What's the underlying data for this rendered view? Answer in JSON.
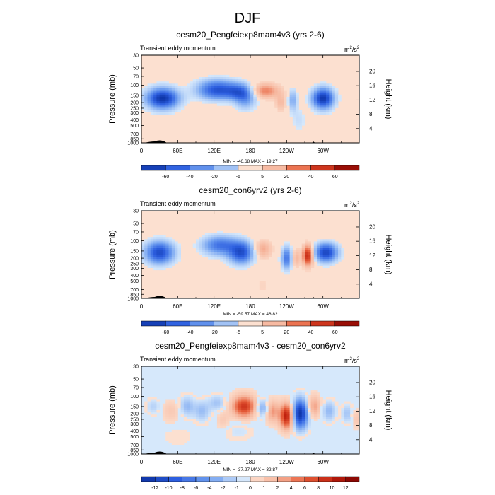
{
  "figure_title": "DJF",
  "colors": {
    "ocean_base": "#fce0d0",
    "light_blue": "#d6e8fb",
    "mid_blue": "#6f9ff0",
    "strong_blue": "#2d5fe0",
    "deep_blue": "#0a2fa0",
    "light_red": "#f6b59c",
    "mid_red": "#e8603c",
    "strong_red": "#c0200d",
    "deep_red": "#7a0000",
    "topo": "#000000"
  },
  "chart_data": [
    {
      "type": "heatmap",
      "title": "cesm20_Pengfeiexp8mam4v3 (yrs 2-6)",
      "left_label": "Transient eddy momentum",
      "units": "m²/s²",
      "units_base": "m",
      "units_exp_a": "2",
      "units_mid": "/s",
      "units_exp_b": "2",
      "ylabel": "Pressure (mb)",
      "ylabel_right": "Height (km)",
      "x_ticks": [
        "0",
        "60E",
        "120E",
        "180",
        "120W",
        "60W"
      ],
      "x_tick_lon": [
        0,
        60,
        120,
        180,
        240,
        300
      ],
      "x_range": [
        0,
        360
      ],
      "y_ticks": [
        "30",
        "50",
        "70",
        "100",
        "150",
        "200",
        "250",
        "300",
        "400",
        "500",
        "700",
        "850",
        "1000"
      ],
      "y_tick_p": [
        30,
        50,
        70,
        100,
        150,
        200,
        250,
        300,
        400,
        500,
        700,
        850,
        1000
      ],
      "y_range": [
        30,
        1000
      ],
      "right_ticks": [
        "20",
        "16",
        "12",
        "8",
        "4"
      ],
      "right_tick_km": [
        20,
        16,
        12,
        8,
        4
      ],
      "stats_text": "MIN = -46.68  MAX = 19.27",
      "min": -46.68,
      "max": 19.27,
      "colorbar_labels": [
        "-60",
        "-40",
        "-20",
        "-5",
        "5",
        "20",
        "40",
        "60"
      ],
      "blobs": [
        {
          "lon": 35,
          "p": 170,
          "wl": 18,
          "wp": 0.28,
          "a": -45
        },
        {
          "lon": 125,
          "p": 120,
          "wl": 22,
          "wp": 0.26,
          "a": -35
        },
        {
          "lon": 160,
          "p": 130,
          "wl": 14,
          "wp": 0.22,
          "a": -22
        },
        {
          "lon": 172,
          "p": 170,
          "wl": 12,
          "wp": 0.3,
          "a": -18
        },
        {
          "lon": 205,
          "p": 125,
          "wl": 16,
          "wp": 0.2,
          "a": 19
        },
        {
          "lon": 230,
          "p": 200,
          "wl": 6,
          "wp": 0.25,
          "a": 10
        },
        {
          "lon": 250,
          "p": 180,
          "wl": 5,
          "wp": 0.3,
          "a": -15
        },
        {
          "lon": 300,
          "p": 170,
          "wl": 12,
          "wp": 0.28,
          "a": -44
        },
        {
          "lon": 260,
          "p": 400,
          "wl": 8,
          "wp": 0.35,
          "a": -5
        }
      ]
    },
    {
      "type": "heatmap",
      "title": "cesm20_con6yrv2 (yrs 2-6)",
      "left_label": "Transient eddy momentum",
      "units": "m²/s²",
      "units_base": "m",
      "units_exp_a": "2",
      "units_mid": "/s",
      "units_exp_b": "2",
      "ylabel": "Pressure (mb)",
      "ylabel_right": "Height (km)",
      "x_ticks": [
        "0",
        "60E",
        "120E",
        "180",
        "120W",
        "60W"
      ],
      "x_tick_lon": [
        0,
        60,
        120,
        180,
        240,
        300
      ],
      "x_range": [
        0,
        360
      ],
      "y_ticks": [
        "30",
        "50",
        "70",
        "100",
        "150",
        "200",
        "250",
        "300",
        "400",
        "500",
        "700",
        "850",
        "1000"
      ],
      "y_tick_p": [
        30,
        50,
        70,
        100,
        150,
        200,
        250,
        300,
        400,
        500,
        700,
        850,
        1000
      ],
      "y_range": [
        30,
        1000
      ],
      "right_ticks": [
        "20",
        "16",
        "12",
        "8",
        "4"
      ],
      "right_tick_km": [
        20,
        16,
        12,
        8,
        4
      ],
      "stats_text": "MIN = -59.57  MAX = 46.82",
      "min": -59.57,
      "max": 46.82,
      "colorbar_labels": [
        "-60",
        "-40",
        "-20",
        "-5",
        "5",
        "20",
        "40",
        "60"
      ],
      "blobs": [
        {
          "lon": 30,
          "p": 160,
          "wl": 16,
          "wp": 0.3,
          "a": -48
        },
        {
          "lon": 130,
          "p": 120,
          "wl": 20,
          "wp": 0.26,
          "a": -35
        },
        {
          "lon": 165,
          "p": 160,
          "wl": 14,
          "wp": 0.3,
          "a": -45
        },
        {
          "lon": 200,
          "p": 140,
          "wl": 10,
          "wp": 0.25,
          "a": 18
        },
        {
          "lon": 240,
          "p": 200,
          "wl": 6,
          "wp": 0.3,
          "a": -35
        },
        {
          "lon": 255,
          "p": 200,
          "wl": 5,
          "wp": 0.25,
          "a": 15
        },
        {
          "lon": 275,
          "p": 180,
          "wl": 6,
          "wp": 0.28,
          "a": 46
        },
        {
          "lon": 305,
          "p": 160,
          "wl": 13,
          "wp": 0.25,
          "a": -50
        },
        {
          "lon": 200,
          "p": 600,
          "wl": 12,
          "wp": 0.35,
          "a": 4
        }
      ]
    },
    {
      "type": "heatmap",
      "title": "cesm20_Pengfeiexp8mam4v3 - cesm20_con6yrv2",
      "left_label": "Transient eddy momentum",
      "units": "m²/s²",
      "units_base": "m",
      "units_exp_a": "2",
      "units_mid": "/s",
      "units_exp_b": "2",
      "ylabel": "Pressure (mb)",
      "ylabel_right": "Height (km)",
      "x_ticks": [
        "0",
        "60E",
        "120E",
        "180",
        "120W",
        "60W"
      ],
      "x_tick_lon": [
        0,
        60,
        120,
        180,
        240,
        300
      ],
      "x_range": [
        0,
        360
      ],
      "y_ticks": [
        "30",
        "50",
        "70",
        "100",
        "150",
        "200",
        "250",
        "300",
        "400",
        "500",
        "700",
        "850",
        "1000"
      ],
      "y_tick_p": [
        30,
        50,
        70,
        100,
        150,
        200,
        250,
        300,
        400,
        500,
        700,
        850,
        1000
      ],
      "y_range": [
        30,
        1000
      ],
      "right_ticks": [
        "20",
        "16",
        "12",
        "8",
        "4"
      ],
      "right_tick_km": [
        20,
        16,
        12,
        8,
        4
      ],
      "stats_text": "MIN = -37.27  MAX = 32.87",
      "min": -37.27,
      "max": 32.87,
      "colorbar_labels": [
        "-12",
        "-10",
        "-8",
        "-6",
        "-4",
        "-2",
        "-1",
        "0",
        "1",
        "2",
        "4",
        "6",
        "8",
        "10",
        "12"
      ],
      "blobs": [
        {
          "lon": 20,
          "p": 150,
          "wl": 8,
          "wp": 0.22,
          "a": -6
        },
        {
          "lon": 50,
          "p": 180,
          "wl": 12,
          "wp": 0.3,
          "a": 5
        },
        {
          "lon": 75,
          "p": 150,
          "wl": 9,
          "wp": 0.28,
          "a": -10
        },
        {
          "lon": 100,
          "p": 180,
          "wl": 9,
          "wp": 0.28,
          "a": -9
        },
        {
          "lon": 125,
          "p": 130,
          "wl": 10,
          "wp": 0.22,
          "a": -8
        },
        {
          "lon": 135,
          "p": 260,
          "wl": 8,
          "wp": 0.25,
          "a": 5
        },
        {
          "lon": 170,
          "p": 150,
          "wl": 14,
          "wp": 0.3,
          "a": 25
        },
        {
          "lon": 200,
          "p": 160,
          "wl": 8,
          "wp": 0.25,
          "a": -15
        },
        {
          "lon": 215,
          "p": 180,
          "wl": 8,
          "wp": 0.3,
          "a": 14
        },
        {
          "lon": 240,
          "p": 220,
          "wl": 8,
          "wp": 0.35,
          "a": 30
        },
        {
          "lon": 262,
          "p": 200,
          "wl": 9,
          "wp": 0.4,
          "a": -36
        },
        {
          "lon": 285,
          "p": 150,
          "wl": 8,
          "wp": 0.3,
          "a": 12
        },
        {
          "lon": 310,
          "p": 180,
          "wl": 8,
          "wp": 0.28,
          "a": -10
        },
        {
          "lon": 340,
          "p": 200,
          "wl": 6,
          "wp": 0.25,
          "a": -8
        },
        {
          "lon": 355,
          "p": 250,
          "wl": 5,
          "wp": 0.25,
          "a": 6
        },
        {
          "lon": 160,
          "p": 400,
          "wl": 20,
          "wp": 0.3,
          "a": -3
        },
        {
          "lon": 60,
          "p": 500,
          "wl": 20,
          "wp": 0.3,
          "a": -2
        }
      ]
    }
  ]
}
